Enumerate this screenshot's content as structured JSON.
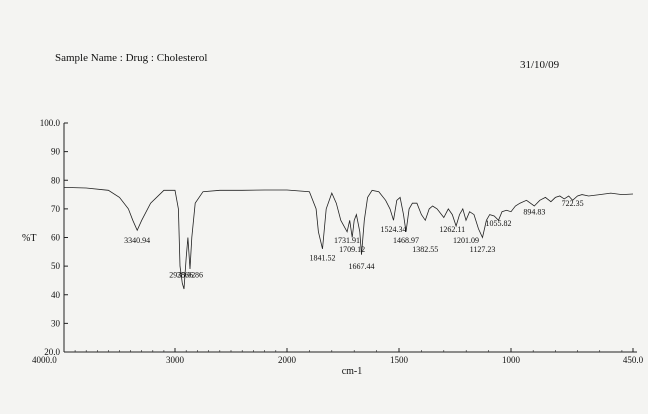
{
  "header": {
    "sample_name": "Sample Name : Drug : Cholesterol",
    "date": "31/10/09"
  },
  "chart_data": {
    "type": "line",
    "title": "",
    "xlabel": "cm-1",
    "ylabel": "%T",
    "xlim": [
      4000,
      450
    ],
    "ylim": [
      20,
      100
    ],
    "x_reversed": true,
    "grid": false,
    "x_ticks": [
      "4000.0",
      "3000",
      "2000",
      "1500",
      "1000",
      "450.0"
    ],
    "x_tick_values": [
      4000,
      3000,
      2000,
      1500,
      1000,
      450
    ],
    "y_ticks": [
      "20.0",
      "30",
      "40",
      "50",
      "60",
      "70",
      "80",
      "90",
      "100.0"
    ],
    "y_tick_values": [
      20,
      30,
      40,
      50,
      60,
      70,
      80,
      90,
      100
    ],
    "series": [
      {
        "x": [
          4000,
          3800,
          3600,
          3500,
          3420,
          3380,
          3340.94,
          3300,
          3220,
          3100,
          3000,
          2970,
          2955,
          2935,
          2920,
          2900,
          2885,
          2866,
          2850,
          2820,
          2750,
          2600,
          2400,
          2200,
          2000,
          1900,
          1870,
          1860,
          1841.52,
          1825,
          1800,
          1780,
          1760,
          1731.91,
          1720,
          1709.12,
          1700,
          1690,
          1675,
          1667.44,
          1655,
          1640,
          1620,
          1590,
          1560,
          1540,
          1524.34,
          1510,
          1495,
          1480,
          1468.97,
          1455,
          1440,
          1420,
          1400,
          1382.55,
          1365,
          1350,
          1330,
          1300,
          1280,
          1262.11,
          1245,
          1230,
          1215,
          1201.09,
          1185,
          1165,
          1145,
          1127.23,
          1110,
          1095,
          1075,
          1055.82,
          1040,
          1020,
          1000,
          980,
          960,
          930,
          894.83,
          870,
          845,
          820,
          800,
          780,
          760,
          740,
          722.35,
          700,
          680,
          650,
          600,
          550,
          500,
          450
        ],
        "y": [
          77.5,
          77.3,
          76.5,
          74,
          70,
          66,
          62.5,
          66,
          72,
          76.5,
          76.5,
          70,
          50,
          44,
          42,
          53,
          60,
          49,
          60,
          72,
          76,
          76.5,
          76.5,
          76.6,
          76.6,
          76,
          70,
          62,
          56,
          70,
          75.5,
          72,
          66,
          62,
          66,
          60,
          66,
          68,
          62,
          54,
          66,
          74,
          76.5,
          76,
          73,
          70,
          66,
          73,
          74,
          68,
          62,
          70,
          72,
          72,
          68,
          66,
          70,
          71,
          70,
          67,
          70,
          68,
          64,
          68,
          70,
          66,
          69,
          68,
          63,
          60,
          66,
          68,
          67.5,
          66,
          69,
          69.5,
          69,
          71,
          72,
          73,
          71,
          73,
          74,
          72.5,
          74,
          74.5,
          73.5,
          74.5,
          73,
          74.5,
          75,
          74.5,
          75,
          75.5,
          75,
          75.2
        ]
      }
    ],
    "annotations": [
      {
        "label": "3340.94",
        "x": 3340.94,
        "y": 58
      },
      {
        "label": "2935.02",
        "x": 2935,
        "y": 46
      },
      {
        "label": "2866.86",
        "x": 2866,
        "y": 46
      },
      {
        "label": "1841.52",
        "x": 1841.52,
        "y": 52
      },
      {
        "label": "1731.91",
        "x": 1731.91,
        "y": 58
      },
      {
        "label": "1709.12",
        "x": 1709.12,
        "y": 55
      },
      {
        "label": "1667.44",
        "x": 1667.44,
        "y": 49
      },
      {
        "label": "1524.34",
        "x": 1524.34,
        "y": 62
      },
      {
        "label": "1468.97",
        "x": 1468.97,
        "y": 58
      },
      {
        "label": "1382.55",
        "x": 1382.55,
        "y": 55
      },
      {
        "label": "1262.11",
        "x": 1262.11,
        "y": 62
      },
      {
        "label": "1201.09",
        "x": 1201.09,
        "y": 58
      },
      {
        "label": "1127.23",
        "x": 1127.23,
        "y": 55
      },
      {
        "label": "1055.82",
        "x": 1055.82,
        "y": 64
      },
      {
        "label": "894.83",
        "x": 894.83,
        "y": 68
      },
      {
        "label": "722.35",
        "x": 722.35,
        "y": 71
      }
    ]
  }
}
